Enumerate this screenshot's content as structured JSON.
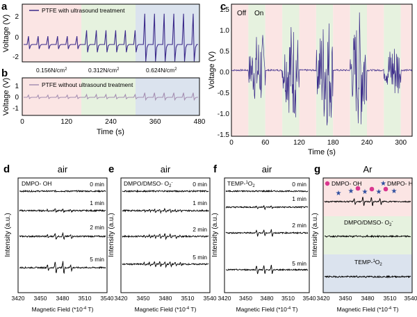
{
  "colors": {
    "dark_purple": "#3b2a8a",
    "light_purple": "#a58fb2",
    "band_pink": "#fbe5e4",
    "band_green": "#e6f2df",
    "band_blue": "#dbe3ee",
    "marker_pink": "#d9368f",
    "marker_blue": "#2f4f9f"
  },
  "panels": {
    "a": {
      "letter": "a",
      "legend": "PTFE with ultrasound treatment",
      "ylabel": "Voltage (V)",
      "yticks": [
        "2",
        "0",
        "-2"
      ],
      "pressure_labels": [
        "0.156N/cm",
        "0.312N/cm",
        "0.624N/cm"
      ],
      "pressure_sup": "2"
    },
    "b": {
      "letter": "b",
      "legend": "PTFE without ultrasound treatment",
      "ylabel": "Voltage (V)",
      "yticks": [
        "1",
        "0",
        "-1"
      ],
      "xlabel": "Time (s)",
      "xticks": [
        "0",
        "120",
        "240",
        "360",
        "480"
      ]
    },
    "c": {
      "letter": "c",
      "ylabel": "Voltage (V)",
      "xlabel": "Time (s)",
      "xticks": [
        "0",
        "60",
        "120",
        "180",
        "240",
        "300"
      ],
      "yticks": [
        "1.5",
        "1.0",
        "0.5",
        "0.0",
        "-0.5",
        "-1.0",
        "-1.5"
      ],
      "band_labels": [
        "Off",
        "On"
      ]
    },
    "epr": {
      "ylabel": "Intensity (a.u.)",
      "xlabel_main": "Magnetic Field (",
      "xlabel_unit": "*10",
      "xlabel_exp": "-4",
      "xlabel_tail": " T)",
      "xticks": [
        "3420",
        "3450",
        "3480",
        "3510",
        "3540"
      ],
      "time_labels": [
        "0 min",
        "1 min",
        "2 min",
        "5 min"
      ]
    },
    "d": {
      "letter": "d",
      "atmosphere": "air",
      "species": "DMPO- OH"
    },
    "e": {
      "letter": "e",
      "atmosphere": "air",
      "species": "DMPO/DMSO- O",
      "species_sub": "2",
      "species_sup": "-"
    },
    "f": {
      "letter": "f",
      "atmosphere": "air",
      "species": "TEMP-",
      "species_sup": "1",
      "species_tail": "O",
      "species_sub": "2"
    },
    "g": {
      "letter": "g",
      "atmosphere": "Ar",
      "legend_oh": "DMPO- OH",
      "legend_h": "DMPO- H",
      "label_o2": "DMPO/DMSO- O",
      "label_o2_sub": "2",
      "label_o2_sup": "-",
      "label_temp": "TEMP-",
      "label_temp_sup": "1",
      "label_temp_tail": "O",
      "label_temp_sub": "2"
    }
  },
  "chart_data": [
    {
      "panel": "a",
      "type": "line",
      "series": [
        {
          "name": "PTFE with ultrasound treatment",
          "peak_values_V": [
            0.7,
            0.7,
            0.7,
            0.7,
            0.7,
            0.7,
            1.2,
            1.2,
            1.2,
            1.2,
            1.2,
            1.2,
            2.6,
            2.6,
            2.6,
            2.6,
            2.6,
            2.6
          ]
        }
      ],
      "x_range": [
        0,
        480
      ],
      "ylim": [
        -2.5,
        2.5
      ],
      "xlabel": "Time (s)",
      "ylabel": "Voltage (V)",
      "pressure_segments": [
        {
          "label": "0.156N/cm2",
          "x": [
            0,
            170
          ]
        },
        {
          "label": "0.312N/cm2",
          "x": [
            170,
            315
          ]
        },
        {
          "label": "0.624N/cm2",
          "x": [
            315,
            480
          ]
        }
      ]
    },
    {
      "panel": "b",
      "type": "line",
      "series": [
        {
          "name": "PTFE without ultrasound treatment",
          "peak_values_V": [
            0.25,
            0.25,
            0.25,
            0.25,
            0.25,
            0.25,
            0.3,
            0.3,
            0.3,
            0.3,
            0.3,
            0.3,
            0.5,
            0.5,
            0.5,
            0.5,
            0.5,
            0.5
          ]
        }
      ],
      "x_range": [
        0,
        480
      ],
      "ylim": [
        -1.5,
        1.5
      ],
      "xlabel": "Time (s)",
      "ylabel": "Voltage (V)"
    },
    {
      "panel": "c",
      "type": "line",
      "series": [
        {
          "ultrasound_on_intervals_s": [
            [
              30,
              60
            ],
            [
              90,
              120
            ],
            [
              150,
              180
            ],
            [
              210,
              240
            ],
            [
              270,
              300
            ]
          ],
          "peak_amplitude_V": [
            0.9,
            1.2,
            1.4,
            1.45,
            0.7
          ]
        }
      ],
      "x_range": [
        0,
        320
      ],
      "ylim": [
        -1.5,
        1.5
      ],
      "xlabel": "Time (s)",
      "ylabel": "Voltage (V)"
    },
    {
      "panel": "d",
      "type": "line",
      "series": [
        {
          "name": "0 min",
          "amplitude": 0.05
        },
        {
          "name": "1 min",
          "amplitude": 0.35
        },
        {
          "name": "2 min",
          "amplitude": 0.55
        },
        {
          "name": "5 min",
          "amplitude": 1.0
        }
      ],
      "x_range": [
        3420,
        3540
      ],
      "xlabel": "Magnetic Field (*10-4 T)",
      "ylabel": "Intensity (a.u.)"
    },
    {
      "panel": "e",
      "type": "line",
      "series": [
        {
          "name": "0 min",
          "amplitude": 0.05
        },
        {
          "name": "1 min",
          "amplitude": 0.45
        },
        {
          "name": "2 min",
          "amplitude": 0.6
        },
        {
          "name": "5 min",
          "amplitude": 0.65
        }
      ],
      "x_range": [
        3420,
        3540
      ],
      "xlabel": "Magnetic Field (*10-4 T)",
      "ylabel": "Intensity (a.u.)"
    },
    {
      "panel": "f",
      "type": "line",
      "series": [
        {
          "name": "0 min",
          "amplitude": 0.05
        },
        {
          "name": "1 min",
          "amplitude": 0.4
        },
        {
          "name": "2 min",
          "amplitude": 0.75
        },
        {
          "name": "5 min",
          "amplitude": 1.0
        }
      ],
      "x_range": [
        3420,
        3540
      ],
      "xlabel": "Magnetic Field (*10-4 T)",
      "ylabel": "Intensity (a.u.)"
    },
    {
      "panel": "g",
      "type": "line",
      "series": [
        {
          "name": "DMPO- OH",
          "amplitude": 0.9
        },
        {
          "name": "DMPO/DMSO- O2-",
          "amplitude": 0.1
        },
        {
          "name": "TEMP-1O2",
          "amplitude": 0.1
        }
      ],
      "x_range": [
        3420,
        3540
      ],
      "xlabel": "Magnetic Field (*10-4 T)",
      "ylabel": "Intensity (a.u.)"
    }
  ]
}
